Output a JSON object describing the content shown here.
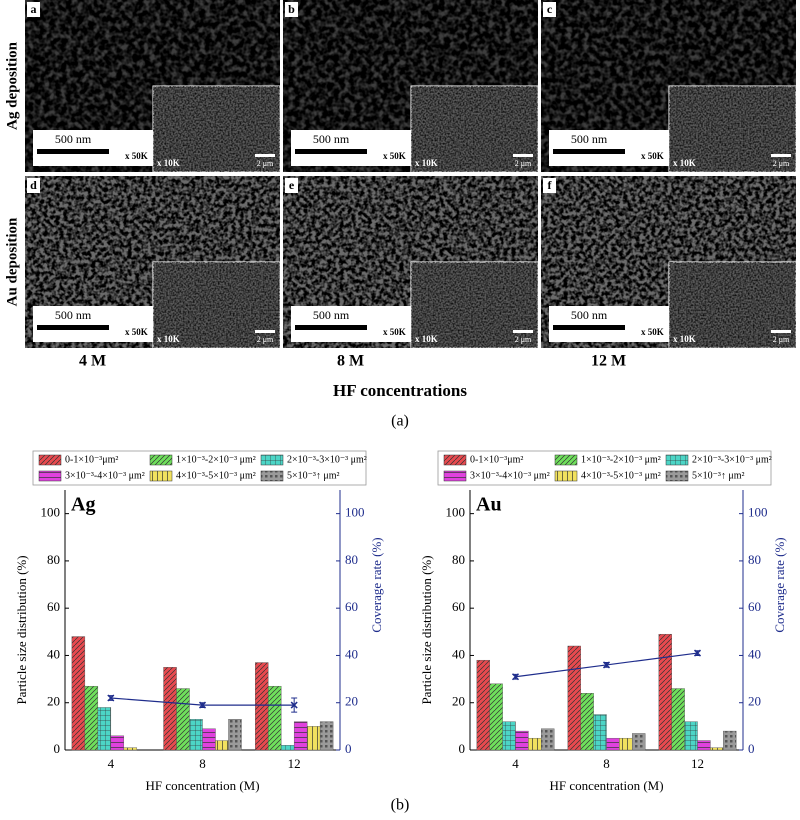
{
  "figure_a": {
    "rows": [
      "Ag deposition",
      "Au deposition"
    ],
    "columns": [
      "4 M",
      "8 M",
      "12 M"
    ],
    "axis_title": "HF concentrations",
    "caption": "(a)",
    "panels": [
      {
        "label": "a",
        "scale": "500 nm",
        "mag": "x 50K",
        "inset_mag": "x 10K",
        "inset_scale": "2 μm"
      },
      {
        "label": "b",
        "scale": "500 nm",
        "mag": "x 50K",
        "inset_mag": "x 10K",
        "inset_scale": "2 μm"
      },
      {
        "label": "c",
        "scale": "500 nm",
        "mag": "x 50K",
        "inset_mag": "x 10K",
        "inset_scale": "2 μm"
      },
      {
        "label": "d",
        "scale": "500 nm",
        "mag": "x 50K",
        "inset_mag": "x 10K",
        "inset_scale": "2 μm"
      },
      {
        "label": "e",
        "scale": "500 nm",
        "mag": "x 50K",
        "inset_mag": "x 10K",
        "inset_scale": "2 μm"
      },
      {
        "label": "f",
        "scale": "500 nm",
        "mag": "x 50K",
        "inset_mag": "x 10K",
        "inset_scale": "2 μm"
      }
    ]
  },
  "figure_b_caption": "(b)",
  "chart_data": [
    {
      "type": "bar",
      "title": "Ag",
      "categories": [
        "4",
        "8",
        "12"
      ],
      "xlabel": "HF concentration (M)",
      "ylabel": "Particle size distribution (%)",
      "y2label": "Coverage rate (%)",
      "ylim": [
        0,
        110
      ],
      "yticks": [
        0,
        20,
        40,
        60,
        80,
        100
      ],
      "y2lim": [
        0,
        110
      ],
      "y2ticks": [
        0,
        20,
        40,
        60,
        80,
        100
      ],
      "series": [
        {
          "name": "0-1×10⁻³μm²",
          "color": "#e84a4f",
          "values": [
            48,
            35,
            37
          ]
        },
        {
          "name": "1×10⁻³-2×10⁻³ μm²",
          "color": "#6fe05c",
          "values": [
            27,
            26,
            27
          ]
        },
        {
          "name": "2×10⁻³-3×10⁻³ μm²",
          "color": "#4cd5c6",
          "values": [
            18,
            13,
            2
          ]
        },
        {
          "name": "3×10⁻³-4×10⁻³ μm²",
          "color": "#e041de",
          "values": [
            6,
            9,
            12
          ]
        },
        {
          "name": "4×10⁻³-5×10⁻³ μm²",
          "color": "#f1e15f",
          "values": [
            1,
            4,
            10
          ]
        },
        {
          "name": "5×10⁻³↑   μm²",
          "color": "#9a9a9a",
          "values": [
            0,
            13,
            12
          ]
        },
        {
          "axis": "y2",
          "color": "#1f2d8c",
          "values": [
            22,
            19,
            19
          ],
          "errors": [
            1,
            1,
            3
          ]
        }
      ]
    },
    {
      "type": "bar",
      "title": "Au",
      "categories": [
        "4",
        "8",
        "12"
      ],
      "xlabel": "HF concentration (M)",
      "ylabel": "Particle size distribution (%)",
      "y2label": "Coverage rate (%)",
      "ylim": [
        0,
        110
      ],
      "yticks": [
        0,
        20,
        40,
        60,
        80,
        100
      ],
      "y2lim": [
        0,
        110
      ],
      "y2ticks": [
        0,
        20,
        40,
        60,
        80,
        100
      ],
      "series": [
        {
          "name": "0-1×10⁻³μm²",
          "color": "#e84a4f",
          "values": [
            38,
            44,
            49
          ]
        },
        {
          "name": "1×10⁻³-2×10⁻³ μm²",
          "color": "#6fe05c",
          "values": [
            28,
            24,
            26
          ]
        },
        {
          "name": "2×10⁻³-3×10⁻³ μm²",
          "color": "#4cd5c6",
          "values": [
            12,
            15,
            12
          ]
        },
        {
          "name": "3×10⁻³-4×10⁻³ μm²",
          "color": "#e041de",
          "values": [
            8,
            5,
            4
          ]
        },
        {
          "name": "4×10⁻³-5×10⁻³ μm²",
          "color": "#f1e15f",
          "values": [
            5,
            5,
            1
          ]
        },
        {
          "name": "5×10⁻³↑   μm²",
          "color": "#9a9a9a",
          "values": [
            9,
            7,
            8
          ]
        },
        {
          "axis": "y2",
          "color": "#1f2d8c",
          "values": [
            31,
            36,
            41
          ],
          "errors": [
            1,
            1,
            1
          ]
        }
      ]
    }
  ]
}
